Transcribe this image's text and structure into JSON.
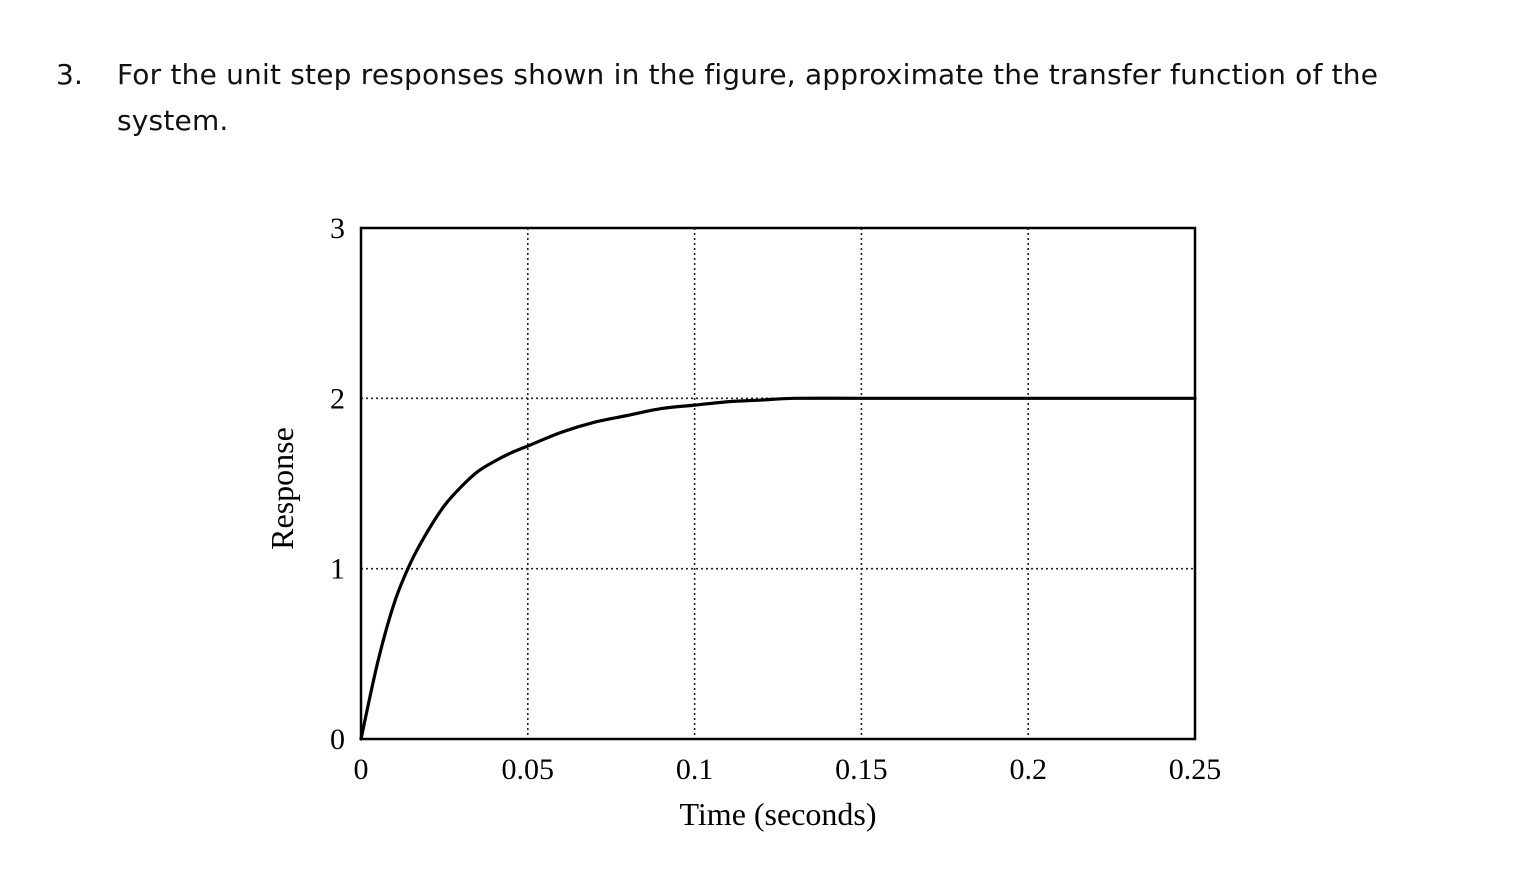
{
  "question": {
    "number": "3.",
    "text": "For the unit step responses shown in the figure, approximate the transfer function of the system."
  },
  "chart_data": {
    "type": "line",
    "title": "",
    "xlabel": "Time (seconds)",
    "ylabel": "Response",
    "xlim": [
      0,
      0.25
    ],
    "ylim": [
      0,
      3
    ],
    "x_ticks": [
      0,
      0.05,
      0.1,
      0.15,
      0.2,
      0.25
    ],
    "x_tick_labels": [
      "0",
      "0.05",
      "0.1",
      "0.15",
      "0.2",
      "0.25"
    ],
    "y_ticks": [
      0,
      1,
      2,
      3
    ],
    "y_tick_labels": [
      "0",
      "1",
      "2",
      "3"
    ],
    "grid": true,
    "legend": "none",
    "series": [
      {
        "x": [
          0,
          0.005,
          0.01,
          0.015,
          0.02,
          0.025,
          0.03,
          0.035,
          0.04,
          0.045,
          0.05,
          0.06,
          0.07,
          0.08,
          0.09,
          0.1,
          0.11,
          0.12,
          0.13,
          0.15,
          0.175,
          0.2,
          0.225,
          0.25
        ],
        "y": [
          0,
          0.45,
          0.8,
          1.04,
          1.22,
          1.37,
          1.48,
          1.57,
          1.63,
          1.68,
          1.72,
          1.8,
          1.86,
          1.9,
          1.94,
          1.96,
          1.98,
          1.99,
          2.0,
          2.0,
          2.0,
          2.0,
          2.0,
          2.0
        ],
        "color": "#000000"
      }
    ]
  }
}
